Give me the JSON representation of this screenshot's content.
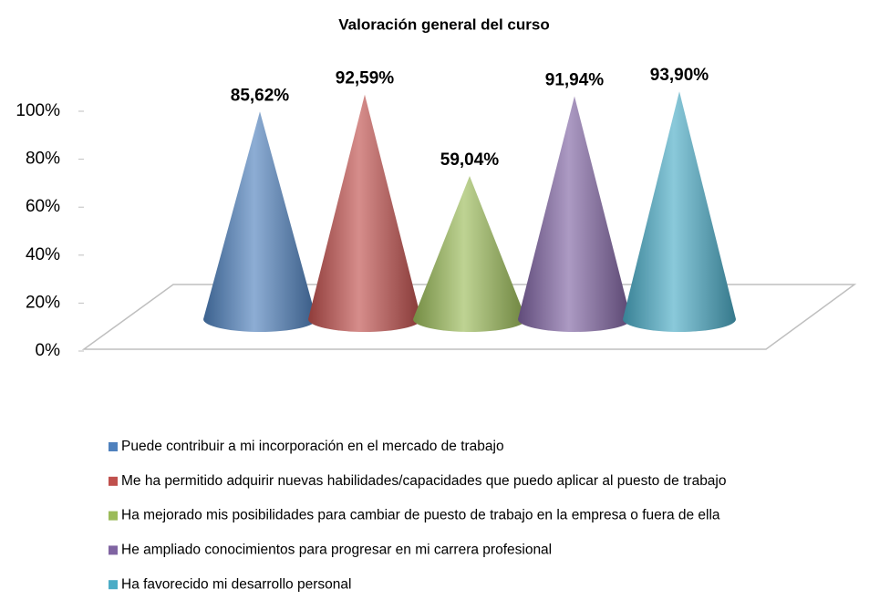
{
  "chart_data": {
    "type": "cone",
    "title": "Valoración general del curso",
    "categories": [
      null
    ],
    "series": [
      {
        "name": "Puede contribuir a mi incorporación en el mercado de trabajo",
        "color": "#4f81bd",
        "values": [
          85.62
        ],
        "value_labels": [
          "85,62%"
        ]
      },
      {
        "name": "Me ha permitido adquirir nuevas habilidades/capacidades que puedo aplicar al puesto de trabajo",
        "color": "#c0504d",
        "values": [
          92.59
        ],
        "value_labels": [
          "92,59%"
        ]
      },
      {
        "name": "Ha mejorado mis posibilidades para cambiar de puesto de trabajo en la empresa o fuera de ella",
        "color": "#9bbb59",
        "values": [
          59.04
        ],
        "value_labels": [
          "59,04%"
        ]
      },
      {
        "name": "He ampliado conocimientos para progresar en mi carrera profesional",
        "color": "#8064a2",
        "values": [
          91.94
        ],
        "value_labels": [
          "91,94%"
        ]
      },
      {
        "name": "Ha favorecido mi desarrollo personal",
        "color": "#4bacc6",
        "values": [
          93.9
        ],
        "value_labels": [
          "93,90%"
        ]
      }
    ],
    "ylim": [
      0,
      100
    ],
    "yticks": [
      {
        "value": 0,
        "label": "0%"
      },
      {
        "value": 20,
        "label": "20%"
      },
      {
        "value": 40,
        "label": "40%"
      },
      {
        "value": 60,
        "label": "60%"
      },
      {
        "value": 80,
        "label": "80%"
      },
      {
        "value": 100,
        "label": "100%"
      }
    ],
    "legend": "bottom"
  }
}
